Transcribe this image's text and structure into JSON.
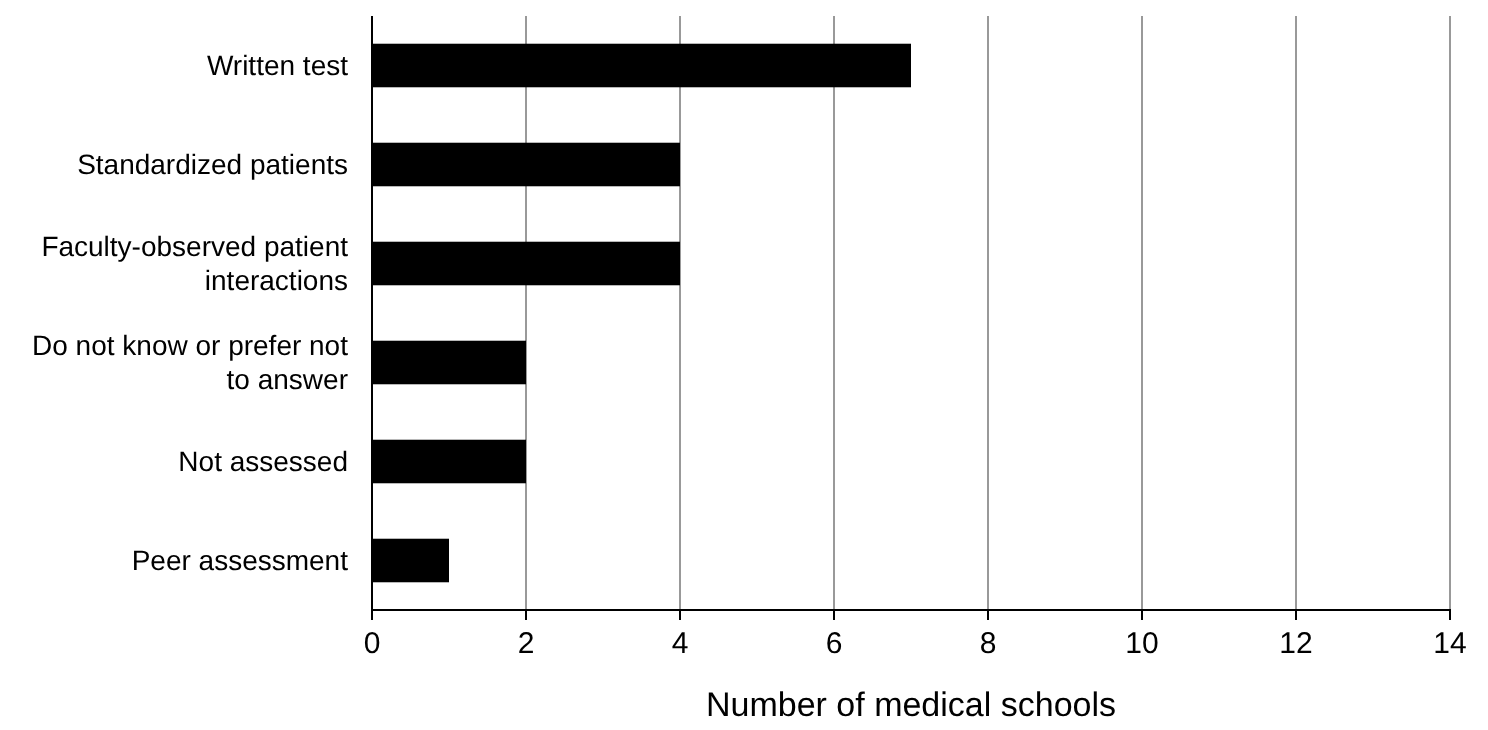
{
  "chart_data": {
    "type": "bar",
    "orientation": "horizontal",
    "xlabel": "Number of medical schools",
    "categories": [
      "Written test",
      "Standardized patients",
      "Faculty-observed patient interactions",
      "Do not know or prefer not to answer",
      "Not assessed",
      "Peer assessment"
    ],
    "values": [
      7,
      4,
      4,
      2,
      2,
      1
    ],
    "color": "#000000",
    "xlim": [
      0,
      14
    ],
    "xticks": [
      0,
      2,
      4,
      6,
      8,
      10,
      12,
      14
    ],
    "grid": "x"
  }
}
